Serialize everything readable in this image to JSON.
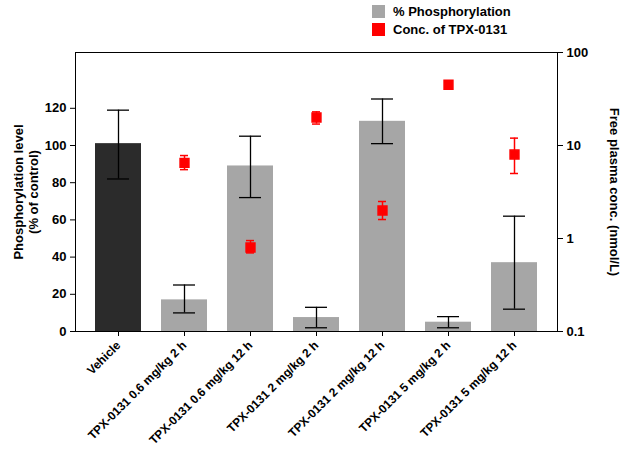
{
  "chart_data": {
    "type": "bar",
    "categories": [
      "Vehicle",
      "TPX-0131 0.6 mg/kg 2 h",
      "TPX-0131 0.6 mg/kg 12 h",
      "TPX-0131 2 mg/kg 2 h",
      "TPX-0131 2 mg/kg 12 h",
      "TPX-0131 5 mg/kg 2 h",
      "TPX-0131 5 mg/kg 12 h"
    ],
    "y_label": "Phosphorylation level\n(% of control)",
    "ylim": [
      0,
      150
    ],
    "yticks": [
      0,
      20,
      40,
      60,
      80,
      100,
      120
    ],
    "y2_label": "Free plasma conc. (nmol/L)",
    "y2lim": [
      0.1,
      100
    ],
    "y2ticks": [
      0.1,
      1,
      10,
      100
    ],
    "log": "y2",
    "legend": "top right",
    "series": [
      {
        "name": "% Phosphorylation",
        "type": "bar",
        "color": "#a6a6a6",
        "colors": [
          "#2b2b2b",
          "#a6a6a6",
          "#a6a6a6",
          "#a6a6a6",
          "#a6a6a6",
          "#a6a6a6",
          "#a6a6a6"
        ],
        "values": [
          101,
          17,
          89,
          7.5,
          113,
          5,
          37
        ],
        "error_lower": [
          82,
          10,
          72,
          2,
          101,
          2,
          12
        ],
        "error_upper": [
          119,
          25,
          105,
          13,
          125,
          8,
          62
        ]
      },
      {
        "name": "Conc. of TPX-0131",
        "type": "scatter",
        "axis": "y2",
        "marker": "square",
        "color": "#ff0000",
        "values": [
          null,
          6.5,
          0.8,
          20,
          2,
          45,
          8
        ],
        "error_lower": [
          null,
          5.5,
          0.7,
          17,
          1.6,
          42,
          5
        ],
        "error_upper": [
          null,
          7.8,
          0.95,
          23,
          2.5,
          48,
          12
        ]
      }
    ]
  }
}
